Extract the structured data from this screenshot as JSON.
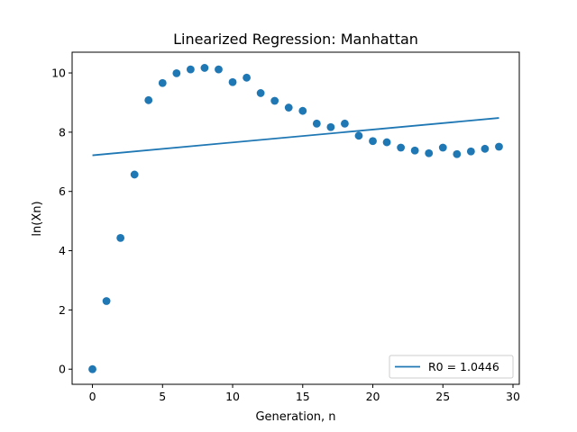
{
  "chart_data": {
    "type": "scatter",
    "title": "Linearized Regression: Manhattan",
    "xlabel": "Generation, n",
    "ylabel": "ln(Xn)",
    "xlim": [
      -1.45,
      30.45
    ],
    "ylim": [
      -0.51,
      10.7
    ],
    "xticks": [
      0,
      5,
      10,
      15,
      20,
      25,
      30
    ],
    "yticks": [
      0,
      2,
      4,
      6,
      8,
      10
    ],
    "grid": false,
    "legend_position": "lower right",
    "colors": {
      "series": "#1f77b4"
    },
    "series": [
      {
        "kind": "scatter",
        "x": [
          0,
          1,
          2,
          3,
          4,
          5,
          6,
          7,
          8,
          9,
          10,
          11,
          12,
          13,
          14,
          15,
          16,
          17,
          18,
          19,
          20,
          21,
          22,
          23,
          24,
          25,
          26,
          27,
          28,
          29
        ],
        "y": [
          0.0,
          2.3,
          4.43,
          6.57,
          9.08,
          9.66,
          9.99,
          10.12,
          10.17,
          10.12,
          9.69,
          9.84,
          9.32,
          9.06,
          8.83,
          8.72,
          8.29,
          8.17,
          8.29,
          7.88,
          7.7,
          7.66,
          7.48,
          7.38,
          7.29,
          7.48,
          7.26,
          7.35,
          7.44,
          7.51
        ]
      },
      {
        "kind": "line",
        "name": "R0 = 1.0446",
        "x": [
          0,
          29
        ],
        "y": [
          7.22,
          8.48
        ]
      }
    ]
  }
}
